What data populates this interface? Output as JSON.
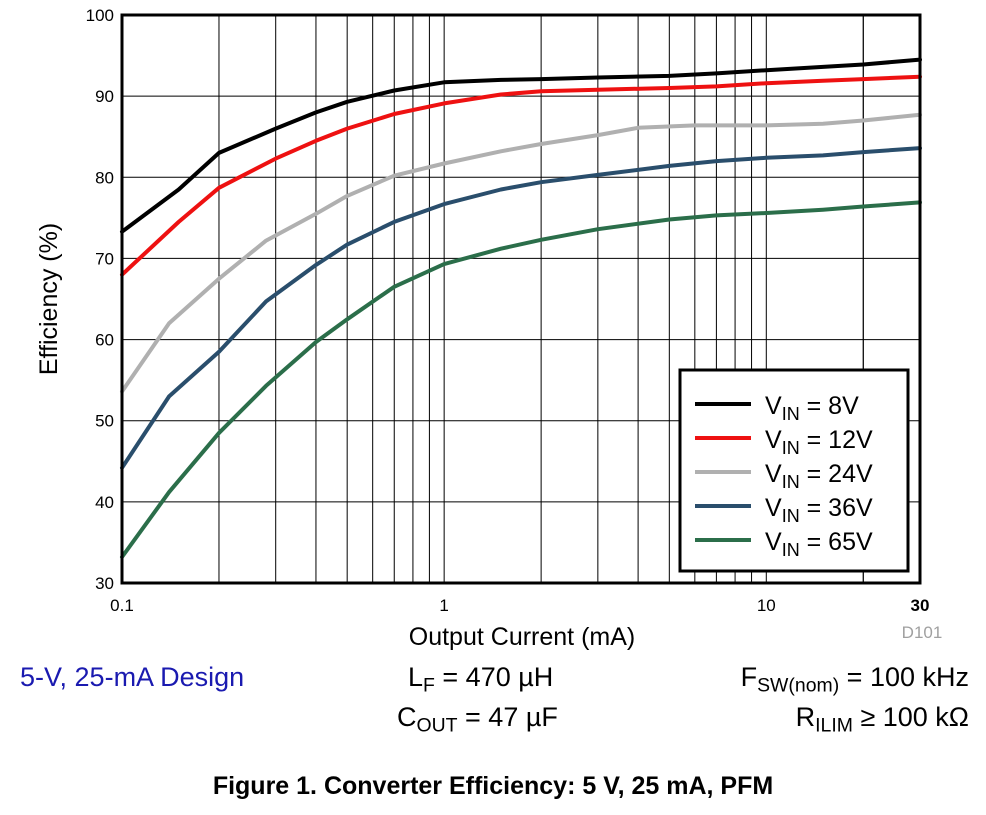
{
  "chart_data": {
    "type": "line",
    "x_scale": "log",
    "xlabel": "Output Current (mA)",
    "ylabel": "Efficiency (%)",
    "xlim": [
      0.1,
      30
    ],
    "ylim": [
      30,
      100
    ],
    "x_ticks": [
      0.1,
      1,
      10,
      30
    ],
    "x_tick_labels": [
      "0.1",
      "1",
      "10",
      "30"
    ],
    "y_ticks": [
      30,
      40,
      50,
      60,
      70,
      80,
      90,
      100
    ],
    "y_tick_labels": [
      "30",
      "40",
      "50",
      "60",
      "70",
      "80",
      "90",
      "100"
    ],
    "grid": true,
    "legend_position": "bottom-right",
    "watermark": "D101",
    "series": [
      {
        "name": "8V",
        "legend_prefix": "V",
        "legend_sub": "IN",
        "legend_suffix": " = 8V",
        "color": "#000000",
        "x": [
          0.1,
          0.15,
          0.2,
          0.3,
          0.4,
          0.5,
          0.7,
          1,
          1.5,
          2,
          3,
          5,
          7,
          10,
          15,
          20,
          30
        ],
        "y": [
          73.3,
          78.5,
          83,
          86,
          88,
          89.3,
          90.7,
          91.7,
          92,
          92.1,
          92.3,
          92.5,
          92.8,
          93.2,
          93.6,
          93.9,
          94.5
        ]
      },
      {
        "name": "12V",
        "legend_prefix": "V",
        "legend_sub": "IN",
        "legend_suffix": " = 12V",
        "color": "#ee1111",
        "x": [
          0.1,
          0.15,
          0.2,
          0.3,
          0.4,
          0.5,
          0.7,
          1,
          1.5,
          2,
          3,
          5,
          7,
          10,
          15,
          20,
          30
        ],
        "y": [
          68,
          74.5,
          78.7,
          82.3,
          84.5,
          86,
          87.8,
          89.1,
          90.2,
          90.6,
          90.8,
          91,
          91.2,
          91.6,
          91.9,
          92.1,
          92.4
        ]
      },
      {
        "name": "24V",
        "legend_prefix": "V",
        "legend_sub": "IN",
        "legend_suffix": " = 24V",
        "color": "#b0b0b0",
        "x": [
          0.1,
          0.14,
          0.2,
          0.28,
          0.4,
          0.5,
          0.7,
          1,
          1.5,
          2,
          3,
          4,
          6,
          10,
          15,
          20,
          30
        ],
        "y": [
          53.6,
          62,
          67.5,
          72.2,
          75.5,
          77.7,
          80.2,
          81.7,
          83.2,
          84.1,
          85.2,
          86.1,
          86.4,
          86.4,
          86.6,
          87,
          87.7
        ]
      },
      {
        "name": "36V",
        "legend_prefix": "V",
        "legend_sub": "IN",
        "legend_suffix": " = 36V",
        "color": "#2a4e6c",
        "x": [
          0.1,
          0.14,
          0.2,
          0.28,
          0.4,
          0.5,
          0.7,
          1,
          1.5,
          2,
          3,
          5,
          7,
          10,
          15,
          20,
          30
        ],
        "y": [
          44.2,
          53,
          58.5,
          64.7,
          69.2,
          71.7,
          74.5,
          76.7,
          78.5,
          79.4,
          80.3,
          81.4,
          82,
          82.4,
          82.7,
          83.1,
          83.6
        ]
      },
      {
        "name": "65V",
        "legend_prefix": "V",
        "legend_sub": "IN",
        "legend_suffix": " = 65V",
        "color": "#2b6e4a",
        "x": [
          0.1,
          0.14,
          0.2,
          0.28,
          0.4,
          0.5,
          0.7,
          1,
          1.5,
          2,
          3,
          5,
          7,
          10,
          15,
          20,
          30
        ],
        "y": [
          33.2,
          41.2,
          48.5,
          54.3,
          59.7,
          62.5,
          66.5,
          69.3,
          71.2,
          72.3,
          73.6,
          74.8,
          75.3,
          75.6,
          76,
          76.4,
          76.9
        ]
      }
    ]
  },
  "notes": {
    "design": "5-V, 25-mA Design",
    "lf_prefix": "L",
    "lf_sub": "F",
    "lf_suffix": " = 470 µH",
    "cout_prefix": "C",
    "cout_sub": "OUT",
    "cout_suffix": " = 47 µF",
    "fsw_prefix": "F",
    "fsw_sub": "SW(nom)",
    "fsw_suffix": " = 100 kHz",
    "rilim_prefix": "R",
    "rilim_sub": "ILIM",
    "rilim_suffix": " ≥ 100 kΩ"
  },
  "caption": "Figure 1. Converter Efficiency: 5 V, 25 mA, PFM"
}
